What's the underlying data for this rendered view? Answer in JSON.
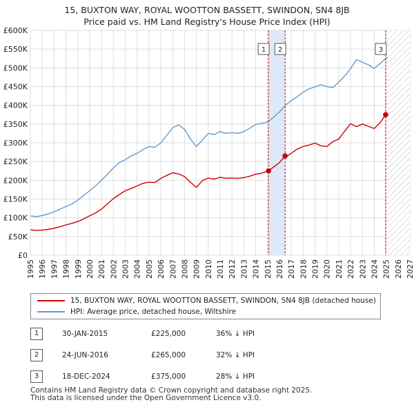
{
  "title": {
    "line1": "15, BUXTON WAY, ROYAL WOOTTON BASSETT, SWINDON, SN4 8JB",
    "line2": "Price paid vs. HM Land Registry's House Price Index (HPI)"
  },
  "legend": {
    "property_label": "15, BUXTON WAY, ROYAL WOOTTON BASSETT, SWINDON, SN4 8JB (detached house)",
    "hpi_label": "HPI: Average price, detached house, Wiltshire"
  },
  "transactions": [
    {
      "num": "1",
      "date": "30-JAN-2015",
      "price": "£225,000",
      "hpi": "36% ↓ HPI"
    },
    {
      "num": "2",
      "date": "24-JUN-2016",
      "price": "£265,000",
      "hpi": "32% ↓ HPI"
    },
    {
      "num": "3",
      "date": "18-DEC-2024",
      "price": "£375,000",
      "hpi": "28% ↓ HPI"
    }
  ],
  "footer": {
    "line1": "Contains HM Land Registry data © Crown copyright and database right 2025.",
    "line2": "This data is licensed under the Open Government Licence v3.0."
  },
  "colors": {
    "property": "#cc0000",
    "hpi": "#6699cc",
    "shade": "#dde8f8",
    "grid": "#dddddd"
  },
  "chart_data": {
    "type": "line",
    "title": "15, BUXTON WAY, ROYAL WOOTTON BASSETT, SWINDON, SN4 8JB — Price paid vs. HM Land Registry's House Price Index (HPI)",
    "xlabel": "",
    "ylabel": "",
    "xlim": [
      1995,
      2027
    ],
    "ylim": [
      0,
      600000
    ],
    "x_ticks": [
      1995,
      1996,
      1997,
      1998,
      1999,
      2000,
      2001,
      2002,
      2003,
      2004,
      2005,
      2006,
      2007,
      2008,
      2009,
      2010,
      2011,
      2012,
      2013,
      2014,
      2015,
      2016,
      2017,
      2018,
      2019,
      2020,
      2021,
      2022,
      2023,
      2024,
      2025,
      2026,
      2027
    ],
    "y_ticks": [
      0,
      50000,
      100000,
      150000,
      200000,
      250000,
      300000,
      350000,
      400000,
      450000,
      500000,
      550000,
      600000
    ],
    "y_tick_labels": [
      "£0",
      "£50K",
      "£100K",
      "£150K",
      "£200K",
      "£250K",
      "£300K",
      "£350K",
      "£400K",
      "£450K",
      "£500K",
      "£550K",
      "£600K"
    ],
    "grid": true,
    "legend_position": "below",
    "series": [
      {
        "name": "15, BUXTON WAY, ROYAL WOOTTON BASSETT, SWINDON, SN4 8JB (detached house)",
        "color": "#cc0000",
        "x": [
          1995,
          1995.5,
          1996,
          1996.5,
          1997,
          1997.5,
          1998,
          1998.5,
          1999,
          1999.5,
          2000,
          2000.5,
          2001,
          2001.5,
          2002,
          2002.5,
          2003,
          2003.5,
          2004,
          2004.5,
          2005,
          2005.5,
          2006,
          2006.5,
          2007,
          2007.5,
          2008,
          2008.5,
          2009,
          2009.5,
          2010,
          2010.5,
          2011,
          2011.5,
          2012,
          2012.5,
          2013,
          2013.5,
          2014,
          2014.5,
          2015.08,
          2015.5,
          2016,
          2016.48,
          2016.5,
          2017,
          2017.5,
          2018,
          2018.5,
          2019,
          2019.5,
          2020,
          2020.5,
          2021,
          2021.5,
          2022,
          2022.5,
          2023,
          2023.5,
          2024,
          2024.5,
          2024.96,
          2025.1
        ],
        "values": [
          68000,
          66000,
          67000,
          69000,
          72000,
          76000,
          81000,
          85000,
          90000,
          97000,
          105000,
          113000,
          123000,
          137000,
          151000,
          162000,
          172000,
          178000,
          185000,
          192000,
          195000,
          194000,
          205000,
          213000,
          220000,
          217000,
          210000,
          195000,
          181000,
          199000,
          206000,
          203000,
          208000,
          205000,
          206000,
          205000,
          207000,
          211000,
          216000,
          219000,
          225000,
          235000,
          247000,
          265000,
          261000,
          272000,
          283000,
          290000,
          294000,
          299000,
          292000,
          290000,
          303000,
          310000,
          331000,
          351000,
          343000,
          350000,
          344000,
          338000,
          354000,
          375000,
          378000
        ]
      },
      {
        "name": "HPI: Average price, detached house, Wiltshire",
        "color": "#6699cc",
        "x": [
          1995,
          1995.5,
          1996,
          1996.5,
          1997,
          1997.5,
          1998,
          1998.5,
          1999,
          1999.5,
          2000,
          2000.5,
          2001,
          2001.5,
          2002,
          2002.5,
          2003,
          2003.5,
          2004,
          2004.5,
          2005,
          2005.5,
          2006,
          2006.5,
          2007,
          2007.5,
          2008,
          2008.5,
          2009,
          2009.5,
          2010,
          2010.5,
          2011,
          2011.5,
          2012,
          2012.5,
          2013,
          2013.5,
          2014,
          2014.5,
          2015,
          2015.5,
          2016,
          2016.5,
          2017,
          2017.5,
          2018,
          2018.5,
          2019,
          2019.5,
          2020,
          2020.5,
          2021,
          2021.5,
          2022,
          2022.5,
          2023,
          2023.5,
          2024,
          2024.5,
          2025.1
        ],
        "values": [
          105000,
          103000,
          106000,
          110000,
          116000,
          123000,
          130000,
          137000,
          147000,
          160000,
          172000,
          185000,
          200000,
          216000,
          233000,
          247000,
          255000,
          265000,
          272000,
          282000,
          290000,
          288000,
          300000,
          320000,
          340000,
          348000,
          336000,
          310000,
          290000,
          307000,
          325000,
          322000,
          330000,
          325000,
          327000,
          325000,
          330000,
          339000,
          349000,
          352000,
          355000,
          368000,
          382000,
          400000,
          412000,
          423000,
          435000,
          444000,
          449000,
          455000,
          450000,
          447000,
          462000,
          478000,
          498000,
          522000,
          515000,
          508000,
          498000,
          512000,
          528000
        ]
      }
    ],
    "annotations": [
      {
        "label": "1",
        "x": 2015.08,
        "value": 225000
      },
      {
        "label": "2",
        "x": 2016.48,
        "value": 265000
      },
      {
        "label": "3",
        "x": 2024.96,
        "value": 375000
      }
    ],
    "shaded_region": {
      "from": 2015.08,
      "to": 2016.48
    },
    "hatched_future_from": 2025.1
  }
}
